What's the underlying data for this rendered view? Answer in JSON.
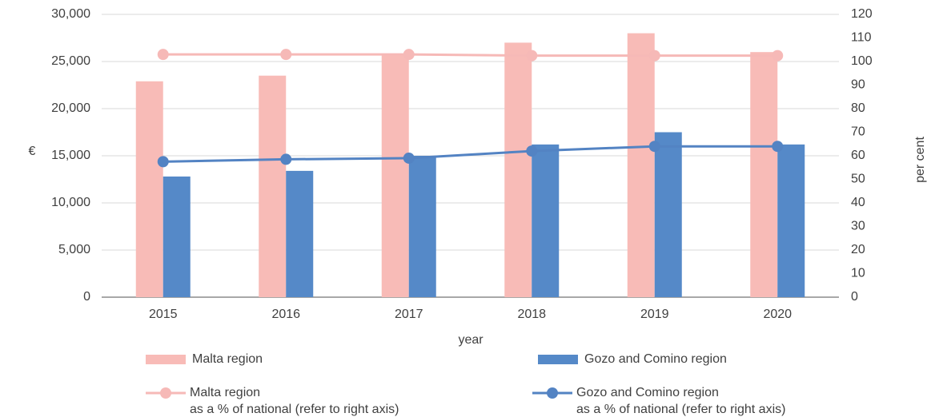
{
  "chart_data": {
    "type": "bar",
    "x_label": "year",
    "y_label": "€",
    "y2_label": "per cent",
    "categories": [
      "2015",
      "2016",
      "2017",
      "2018",
      "2019",
      "2020"
    ],
    "series": [
      {
        "name": "Malta region",
        "type": "bar",
        "color": "#f8bbb7",
        "values": [
          22900,
          23500,
          25800,
          27000,
          28000,
          26000
        ]
      },
      {
        "name": "Gozo and Comino region",
        "type": "bar",
        "color": "#5589c8",
        "values": [
          12800,
          13400,
          15000,
          16200,
          17500,
          16200
        ]
      },
      {
        "name": "Malta region\nas a % of national (refer to right axis)",
        "type": "line",
        "axis": "y2",
        "color": "#f6b9b7",
        "values": [
          103,
          103,
          103,
          102.5,
          102.5,
          102.5
        ]
      },
      {
        "name": "Gozo and Comino region\nas a % of national (refer to right axis)",
        "type": "line",
        "axis": "y2",
        "color": "#5383c3",
        "values": [
          57.5,
          58.5,
          59,
          62,
          64,
          64
        ]
      }
    ],
    "ylim": [
      0,
      30000
    ],
    "yticks": [
      0,
      {
        "value": 5000,
        "label": "5,000"
      },
      {
        "value": 10000,
        "label": "10,000"
      },
      {
        "value": 15000,
        "label": "15,000"
      },
      {
        "value": 20000,
        "label": "20,000"
      },
      {
        "value": 25000,
        "label": "25,000"
      },
      {
        "value": 30000,
        "label": "30,000"
      }
    ],
    "y2lim": [
      0,
      120
    ],
    "y2ticks": [
      0,
      10,
      20,
      30,
      40,
      50,
      60,
      70,
      80,
      90,
      100,
      110,
      120
    ],
    "grid": true
  }
}
